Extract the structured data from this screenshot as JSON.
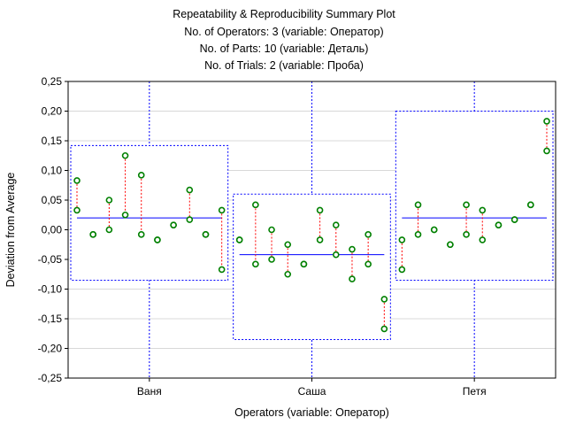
{
  "chart_data": {
    "type": "scatter",
    "title_lines": [
      "Repeatability & Reproducibility Summary Plot",
      "No. of Operators: 3 (variable:  Оператор)",
      "No. of     Parts: 10 (variable:  Деталь)",
      "No. of    Trials: 2 (variable:  Проба)"
    ],
    "xlabel": "Operators (variable: Оператор)",
    "ylabel": "Deviation from Average",
    "ylim": [
      -0.25,
      0.25
    ],
    "yticks": [
      "-0,25",
      "-0,20",
      "-0,15",
      "-0,10",
      "-0,05",
      "0,00",
      "0,05",
      "0,10",
      "0,15",
      "0,20",
      "0,25"
    ],
    "grid": true,
    "operators": [
      {
        "name": "Ваня",
        "mean": 0.02,
        "box": [
          -0.085,
          0.142
        ],
        "trials": [
          [
            0.083,
            0.033
          ],
          [
            -0.008,
            -0.008
          ],
          [
            0.05,
            0.0
          ],
          [
            0.125,
            0.025
          ],
          [
            0.092,
            -0.008
          ],
          [
            -0.017,
            -0.017
          ],
          [
            0.008,
            0.008
          ],
          [
            0.067,
            0.017
          ],
          [
            -0.008,
            -0.008
          ],
          [
            0.033,
            -0.067
          ]
        ]
      },
      {
        "name": "Саша",
        "mean": -0.042,
        "box": [
          -0.185,
          0.06
        ],
        "trials": [
          [
            -0.017,
            -0.017
          ],
          [
            0.042,
            -0.058
          ],
          [
            0.0,
            -0.05
          ],
          [
            -0.025,
            -0.075
          ],
          [
            -0.058,
            -0.058
          ],
          [
            0.033,
            -0.017
          ],
          [
            0.008,
            -0.042
          ],
          [
            -0.033,
            -0.083
          ],
          [
            -0.008,
            -0.058
          ],
          [
            -0.117,
            -0.167
          ]
        ]
      },
      {
        "name": "Петя",
        "mean": 0.02,
        "box": [
          -0.085,
          0.2
        ],
        "trials": [
          [
            -0.017,
            -0.067
          ],
          [
            0.042,
            -0.008
          ],
          [
            0.0,
            0.0
          ],
          [
            -0.025,
            -0.025
          ],
          [
            0.042,
            -0.008
          ],
          [
            0.033,
            -0.017
          ],
          [
            0.008,
            0.008
          ],
          [
            0.017,
            0.017
          ],
          [
            0.042,
            0.042
          ],
          [
            0.183,
            0.133
          ]
        ]
      }
    ],
    "colors": {
      "point": "#008000",
      "range": "#ff0000",
      "mean": "#0000ff",
      "box": "#0000ff",
      "grid": "#d8d8d8"
    }
  }
}
